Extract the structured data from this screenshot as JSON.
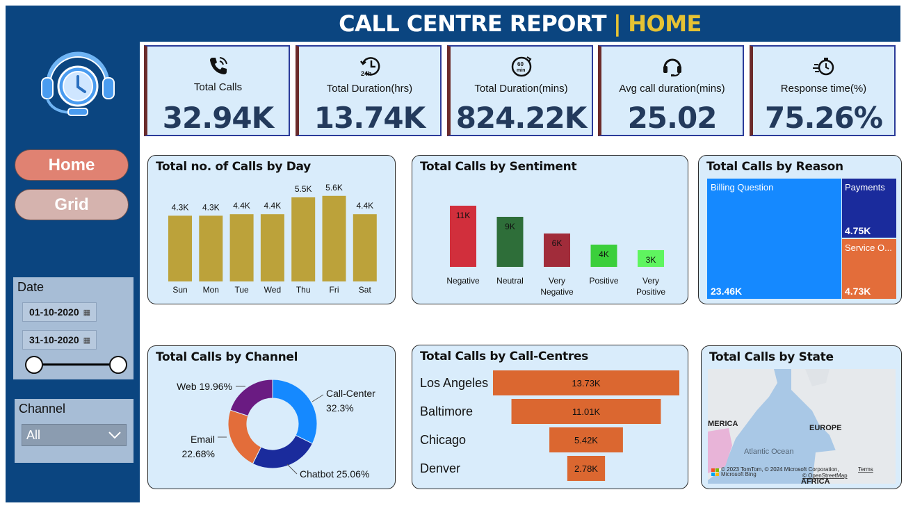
{
  "header": {
    "title": "CALL CENTRE REPORT",
    "separator": "|",
    "page": "HOME"
  },
  "nav": {
    "home_label": "Home",
    "grid_label": "Grid"
  },
  "date_filter": {
    "label": "Date",
    "start": "01-10-2020",
    "end": "31-10-2020"
  },
  "channel_filter": {
    "label": "Channel",
    "selected": "All"
  },
  "kpis": [
    {
      "label": "Total Calls",
      "value": "32.94K",
      "icon": "phone-icon"
    },
    {
      "label": "Total Duration(hrs)",
      "value": "13.74K",
      "icon": "24h-clock-icon"
    },
    {
      "label": "Total Duration(mins)",
      "value": "824.22K",
      "icon": "60min-timer-icon"
    },
    {
      "label": "Avg call duration(mins)",
      "value": "25.02",
      "icon": "headset-icon"
    },
    {
      "label": "Response time(%)",
      "value": "75.26%",
      "icon": "fast-timer-icon"
    }
  ],
  "charts": {
    "day": {
      "title": "Total no. of Calls by Day",
      "chart_data": {
        "type": "bar",
        "categories": [
          "Sun",
          "Mon",
          "Tue",
          "Wed",
          "Thu",
          "Fri",
          "Sat"
        ],
        "values": [
          4.3,
          4.3,
          4.4,
          4.4,
          5.5,
          5.6,
          4.4
        ],
        "labels": [
          "4.3K",
          "4.3K",
          "4.4K",
          "4.4K",
          "5.5K",
          "5.6K",
          "4.4K"
        ],
        "color": "#bca23a"
      }
    },
    "sentiment": {
      "title": "Total Calls by Sentiment",
      "chart_data": {
        "type": "bar",
        "categories": [
          "Negative",
          "Neutral",
          "Very Negative",
          "Positive",
          "Very Positive"
        ],
        "values": [
          11,
          9,
          6,
          4,
          3
        ],
        "labels": [
          "11K",
          "9K",
          "6K",
          "4K",
          "3K"
        ],
        "colors": [
          "#d12f3c",
          "#2e6e39",
          "#a12c3a",
          "#3bcf3b",
          "#5ff55f"
        ]
      }
    },
    "reason": {
      "title": "Total Calls by Reason",
      "chart_data": {
        "type": "treemap",
        "items": [
          {
            "name": "Billing Question",
            "value": "23.46K",
            "color": "#1589ff"
          },
          {
            "name": "Payments",
            "value": "4.75K",
            "color": "#1a2b9c"
          },
          {
            "name": "Service O...",
            "value": "4.73K",
            "color": "#e36d3a"
          }
        ]
      }
    },
    "channel": {
      "title": "Total Calls by Channel",
      "chart_data": {
        "type": "pie",
        "categories": [
          "Call-Center",
          "Chatbot",
          "Email",
          "Web"
        ],
        "values": [
          32.3,
          25.06,
          22.68,
          19.96
        ],
        "labels": [
          "Call-Center 32.3%",
          "Chatbot 25.06%",
          "Email 22.68%",
          "Web 19.96%"
        ],
        "colors": [
          "#1589ff",
          "#1a2b9c",
          "#e36d3a",
          "#6a1b82"
        ]
      }
    },
    "centres": {
      "title": "Total Calls by Call-Centres",
      "chart_data": {
        "type": "funnel",
        "categories": [
          "Los Angeles",
          "Baltimore",
          "Chicago",
          "Denver"
        ],
        "values": [
          13.73,
          11.01,
          5.42,
          2.78
        ],
        "labels": [
          "13.73K",
          "11.01K",
          "5.42K",
          "2.78K"
        ],
        "color": "#db6730"
      }
    },
    "state": {
      "title": "Total Calls by State",
      "map_labels": {
        "america": "MERICA",
        "europe": "EUROPE",
        "ocean": "Atlantic Ocean",
        "africa": "AFRICA"
      },
      "attribution": "© 2023 TomTom, © 2024 Microsoft Corporation,",
      "terms": "Terms",
      "osm": "© OpenStreetMap",
      "brand": "Microsoft Bing"
    }
  }
}
